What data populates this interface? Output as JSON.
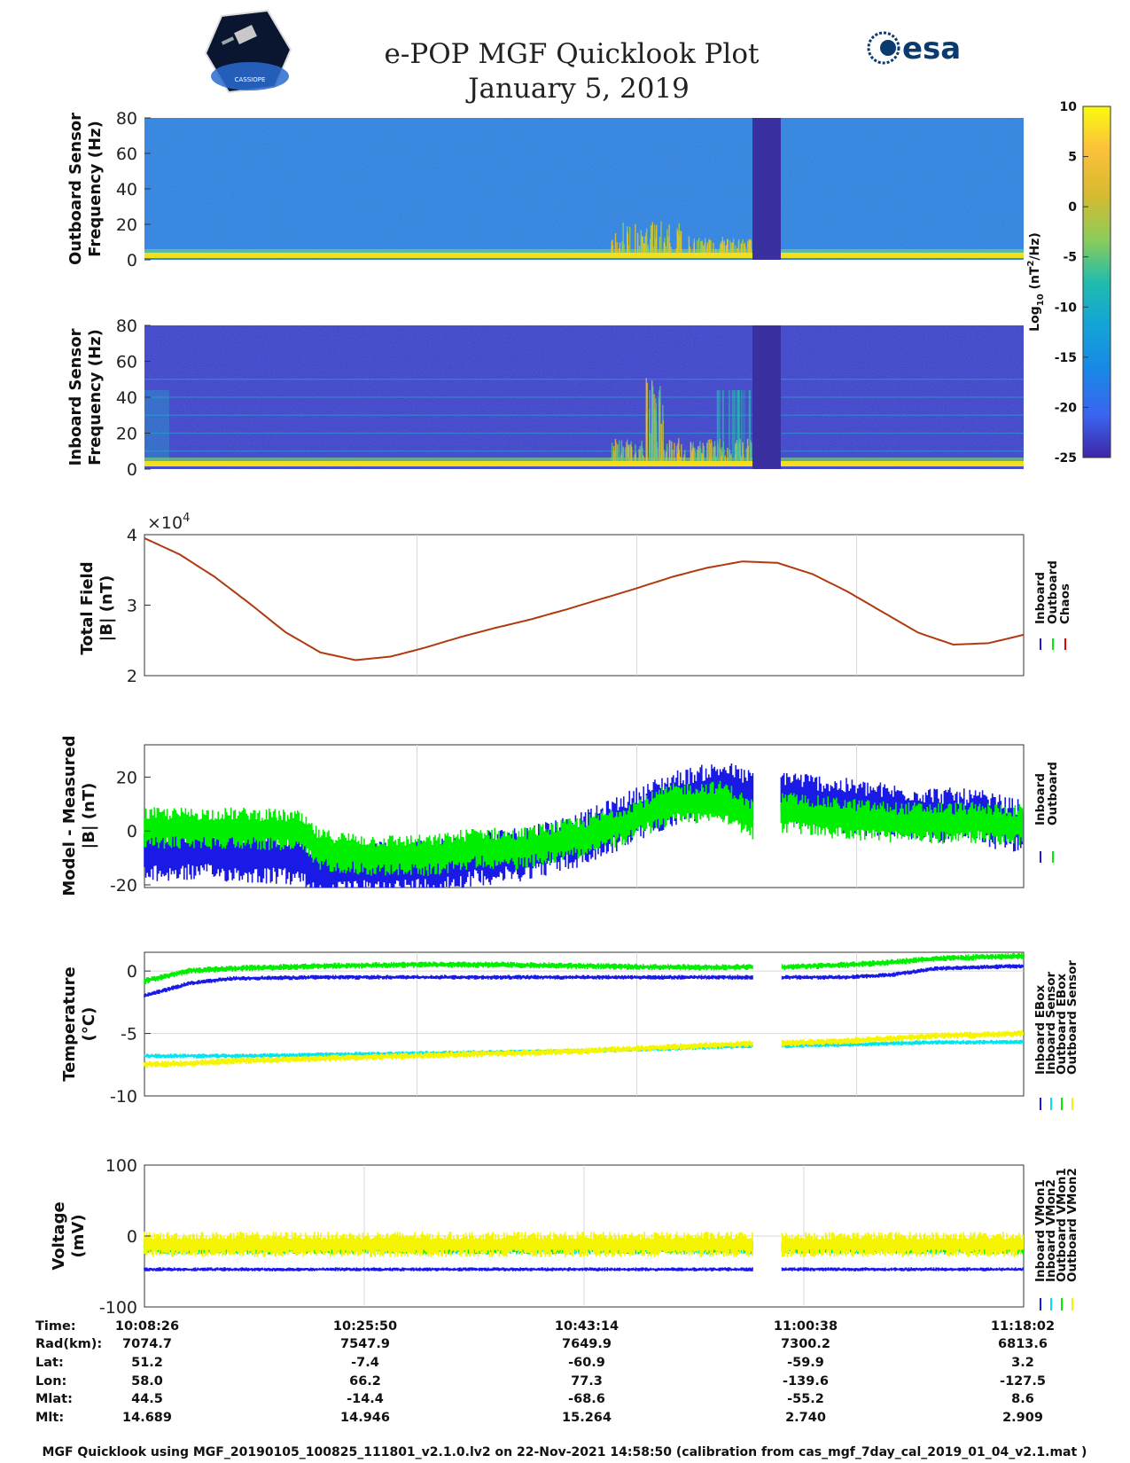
{
  "header": {
    "title_line1": "e-POP MGF Quicklook Plot",
    "title_line2": "January 5, 2019",
    "mission_logo_text": "CASSIOPE",
    "agency_logo_text": "esa"
  },
  "colors": {
    "inboard": "#1a1ae6",
    "outboard": "#00ee00",
    "chaos": "#e60000",
    "cyan": "#00e5ee",
    "yellow": "#f5f500",
    "spectro_bg": "#2c7fdc",
    "spectro_inboard_bg": "#3a3fc4",
    "gap": "#3a30a0"
  },
  "chart_data": [
    {
      "type": "heatmap",
      "name": "outboard_spectrogram",
      "ylabel_line1": "Outboard Sensor",
      "ylabel_line2": "Frequency (Hz)",
      "ylim": [
        0,
        80
      ],
      "yticks": [
        "0",
        "20",
        "40",
        "60",
        "80"
      ],
      "gap_fraction_range": [
        0.692,
        0.724
      ]
    },
    {
      "type": "heatmap",
      "name": "inboard_spectrogram",
      "ylabel_line1": "Inboard Sensor",
      "ylabel_line2": "Frequency (Hz)",
      "ylim": [
        0,
        80
      ],
      "yticks": [
        "0",
        "20",
        "40",
        "60",
        "80"
      ],
      "harmonic_lines_hz": [
        10,
        20,
        30,
        40,
        50
      ]
    },
    {
      "type": "colorbar",
      "label": "Log10 (nT²/Hz)",
      "label_main": "Log",
      "label_sub": "10",
      "label_units": " (nT",
      "label_sup": "2",
      "label_end": "/Hz)",
      "range": [
        -25,
        10
      ],
      "ticks": [
        "10",
        "5",
        "0",
        "-5",
        "-10",
        "-15",
        "-20",
        "-25"
      ]
    },
    {
      "type": "line",
      "name": "total_field",
      "ylabel_line1": "Total Field",
      "ylabel_line2": "|B| (nT)",
      "ylim": [
        2,
        4
      ],
      "yticks": [
        "2",
        "3",
        "4"
      ],
      "exponent_base": "×10",
      "exponent_power": "4",
      "legend": [
        "Inboard",
        "Outboard",
        "Chaos"
      ],
      "x": [
        0,
        0.04,
        0.08,
        0.12,
        0.16,
        0.2,
        0.24,
        0.28,
        0.32,
        0.36,
        0.4,
        0.44,
        0.48,
        0.52,
        0.56,
        0.6,
        0.64,
        0.68,
        0.72,
        0.76,
        0.8,
        0.84,
        0.88,
        0.92,
        0.96,
        1.0
      ],
      "y": [
        3.95,
        3.72,
        3.4,
        3.02,
        2.62,
        2.33,
        2.22,
        2.27,
        2.4,
        2.55,
        2.68,
        2.8,
        2.94,
        3.09,
        3.24,
        3.4,
        3.53,
        3.62,
        3.6,
        3.44,
        3.19,
        2.9,
        2.61,
        2.44,
        2.46,
        2.58
      ]
    },
    {
      "type": "line",
      "name": "model_minus_measured",
      "ylabel_line1": "Model - Measured",
      "ylabel_line2": "|B| (nT)",
      "ylim": [
        -21,
        32
      ],
      "yticks": [
        "-20",
        "0",
        "20"
      ],
      "legend": [
        "Inboard",
        "Outboard"
      ],
      "gap_fraction_range": [
        0.692,
        0.724
      ],
      "x": [
        0,
        0.06,
        0.12,
        0.175,
        0.2,
        0.26,
        0.33,
        0.38,
        0.42,
        0.5,
        0.54,
        0.6,
        0.66,
        0.692,
        0.724,
        0.78,
        0.86,
        0.95,
        1.0
      ],
      "inboard": [
        -9,
        -8,
        -9,
        -10,
        -15,
        -14,
        -13,
        -10,
        -9,
        -3,
        3,
        12,
        16,
        12,
        13,
        10,
        7,
        5,
        1
      ],
      "outboard": [
        1,
        1,
        1,
        0,
        -7,
        -9,
        -9,
        -6,
        -7,
        -2,
        2,
        10,
        11,
        4,
        7,
        5,
        3,
        3,
        2
      ]
    },
    {
      "type": "line",
      "name": "temperature",
      "ylabel_line1": "Temperature",
      "ylabel_line2": "(°C)",
      "ylim": [
        -10,
        1.5
      ],
      "yticks": [
        "-10",
        "-5",
        "0"
      ],
      "legend": [
        "Inboard EBox",
        "Inboard Sensor",
        "Outboard EBox",
        "Outboard Sensor"
      ],
      "gap_fraction_range": [
        0.692,
        0.724
      ],
      "x": [
        0,
        0.05,
        0.1,
        0.2,
        0.3,
        0.4,
        0.5,
        0.6,
        0.692,
        0.724,
        0.8,
        0.85,
        0.9,
        1.0
      ],
      "inboard_ebox": [
        -2.0,
        -1.0,
        -0.6,
        -0.5,
        -0.5,
        -0.5,
        -0.5,
        -0.5,
        -0.5,
        -0.5,
        -0.5,
        -0.3,
        0.2,
        0.4
      ],
      "inboard_sensor": [
        -6.8,
        -6.8,
        -6.8,
        -6.7,
        -6.6,
        -6.5,
        -6.4,
        -6.2,
        -6.0,
        -6.0,
        -5.9,
        -5.8,
        -5.7,
        -5.7
      ],
      "outboard_ebox": [
        -0.8,
        0.0,
        0.2,
        0.4,
        0.5,
        0.5,
        0.4,
        0.3,
        0.3,
        0.3,
        0.5,
        0.7,
        1.0,
        1.2
      ],
      "outboard_sensor": [
        -7.5,
        -7.4,
        -7.2,
        -7.0,
        -6.8,
        -6.6,
        -6.4,
        -6.1,
        -5.8,
        -5.8,
        -5.6,
        -5.4,
        -5.2,
        -5.0
      ]
    },
    {
      "type": "line",
      "name": "voltage",
      "ylabel_line1": "Voltage",
      "ylabel_line2": "(mV)",
      "ylim": [
        -100,
        100
      ],
      "yticks": [
        "-100",
        "0",
        "100"
      ],
      "legend": [
        "Inboard VMon1",
        "Inboard VMon2",
        "Outboard VMon1",
        "Outboard VMon2"
      ],
      "gap_fraction_range": [
        0.692,
        0.724
      ],
      "inboard_vmon1": -47,
      "inboard_vmon2": -15,
      "outboard_vmon1": -15,
      "outboard_vmon2": -2,
      "spread_mv": 14
    }
  ],
  "xaxis": {
    "columns": [
      {
        "time": "10:08:26",
        "rad": "7074.7",
        "lat": "51.2",
        "lon": "58.0",
        "mlat": "44.5",
        "mlt": "14.689"
      },
      {
        "time": "10:25:50",
        "rad": "7547.9",
        "lat": "-7.4",
        "lon": "66.2",
        "mlat": "-14.4",
        "mlt": "14.946"
      },
      {
        "time": "10:43:14",
        "rad": "7649.9",
        "lat": "-60.9",
        "lon": "77.3",
        "mlat": "-68.6",
        "mlt": "15.264"
      },
      {
        "time": "11:00:38",
        "rad": "7300.2",
        "lat": "-59.9",
        "lon": "-139.6",
        "mlat": "-55.2",
        "mlt": "2.740"
      },
      {
        "time": "11:18:02",
        "rad": "6813.6",
        "lat": "3.2",
        "lon": "-127.5",
        "mlat": "8.6",
        "mlt": "2.909"
      }
    ],
    "row_labels": {
      "time": "Time:",
      "rad": "Rad(km):",
      "lat": "Lat:",
      "lon": "Lon:",
      "mlat": "Mlat:",
      "mlt": "Mlt:"
    }
  },
  "footer": {
    "text": "MGF Quicklook using MGF_20190105_100825_111801_v2.1.0.lv2 on 22-Nov-2021 14:58:50 (calibration from cas_mgf_7day_cal_2019_01_04_v2.1.mat )"
  }
}
